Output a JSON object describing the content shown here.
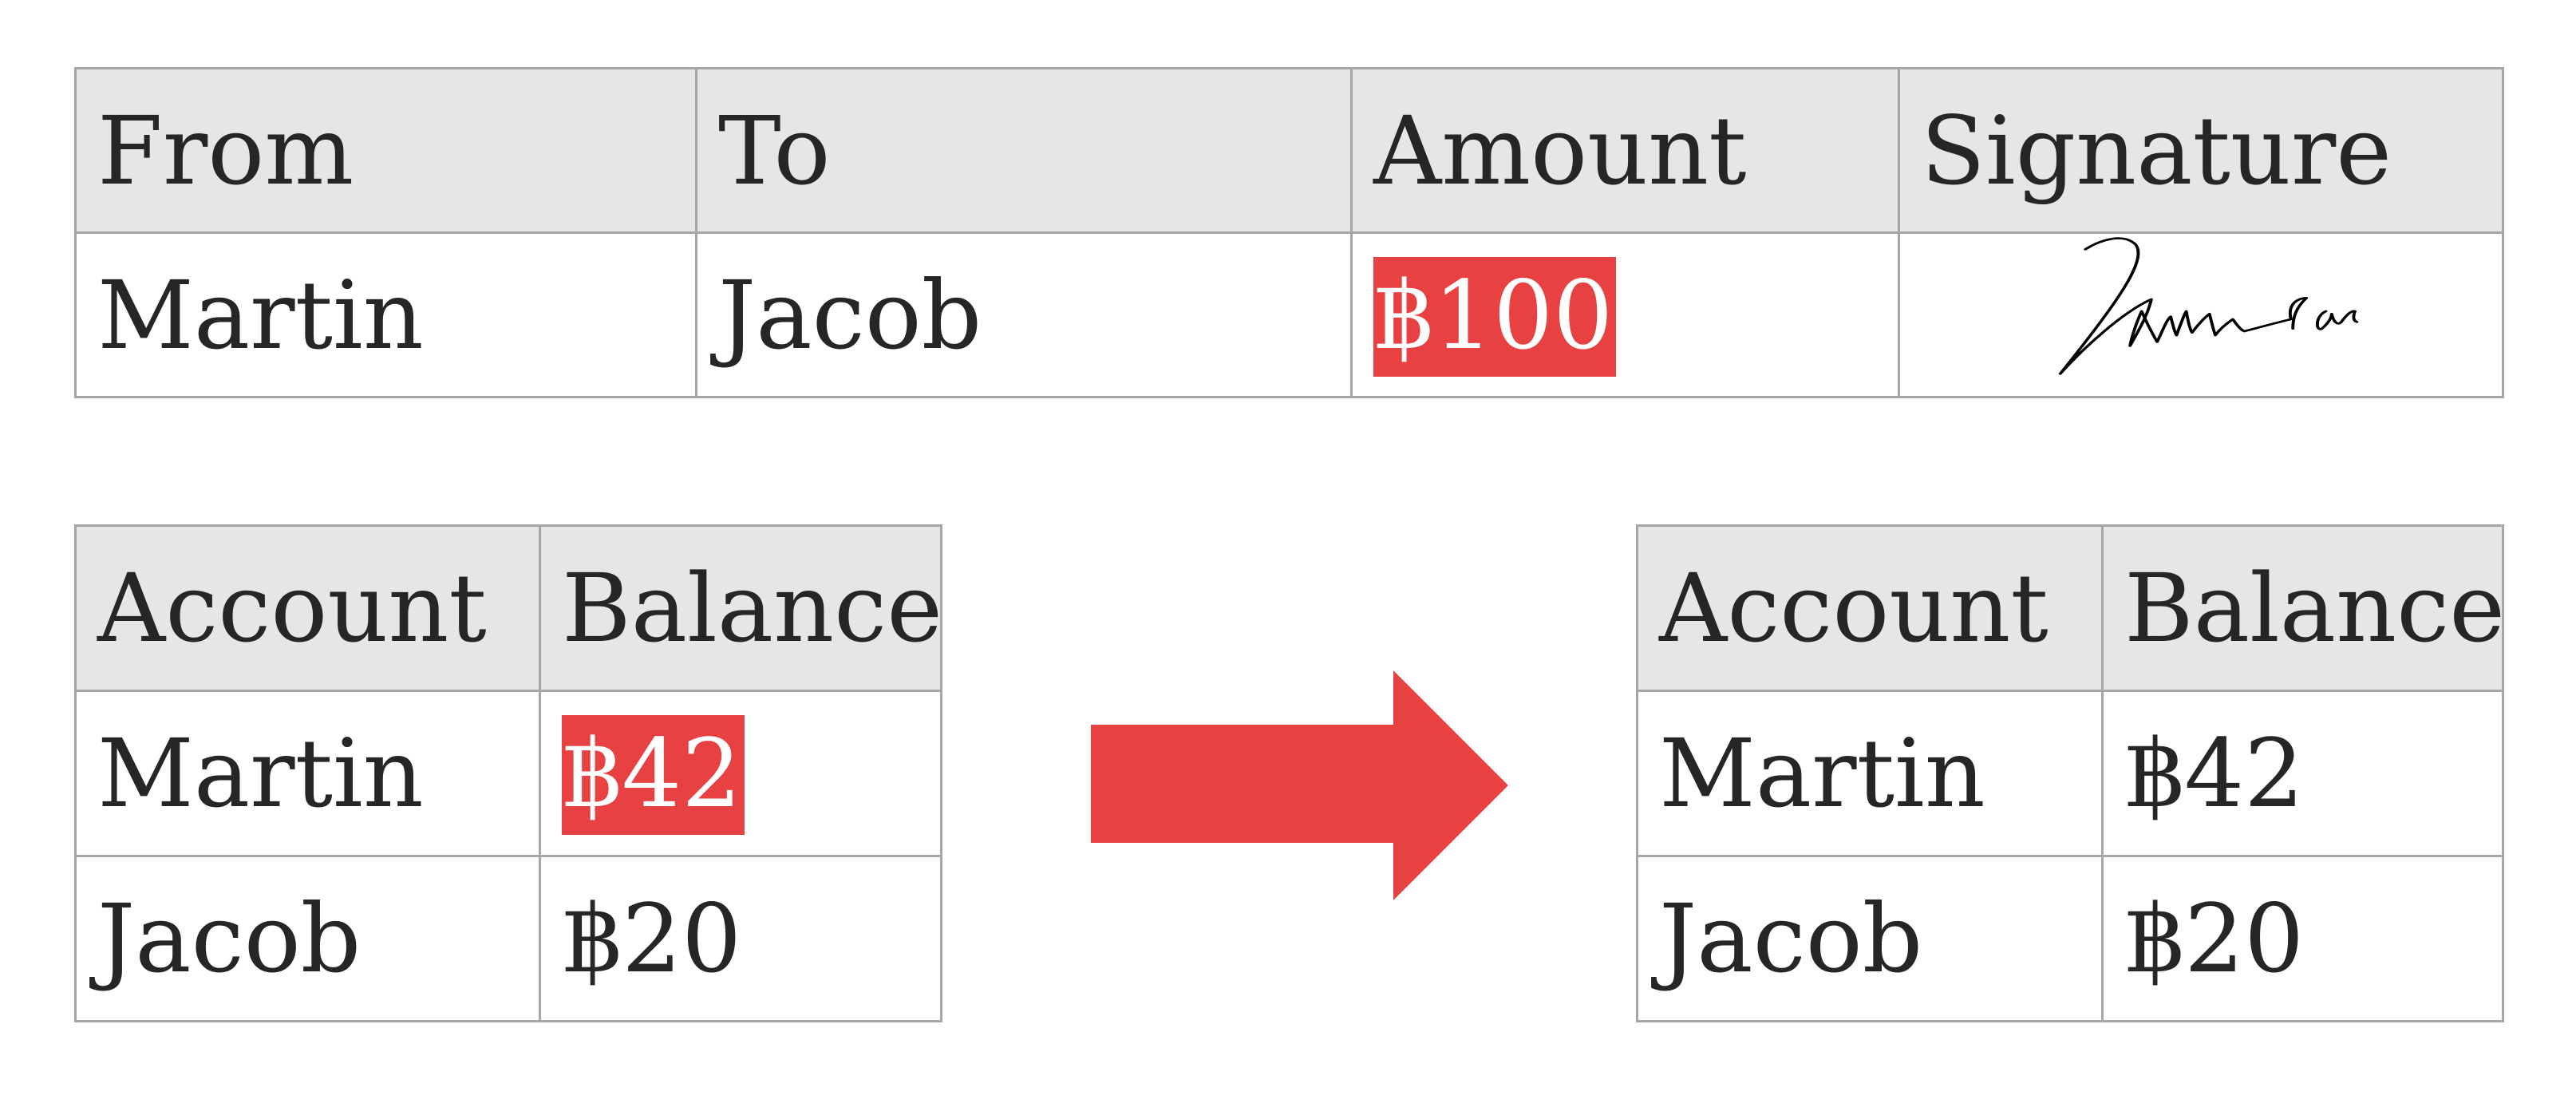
{
  "transaction": {
    "headers": [
      "From",
      "To",
      "Amount",
      "Signature"
    ],
    "row": {
      "from": "Martin",
      "to": "Jacob",
      "amount": "฿100",
      "signature": "Martin signature (handwritten)"
    }
  },
  "balances_before": {
    "headers": [
      "Account",
      "Balance"
    ],
    "rows": [
      {
        "account": "Martin",
        "balance": "฿42"
      },
      {
        "account": "Jacob",
        "balance": "฿20"
      }
    ]
  },
  "balances_after": {
    "headers": [
      "Account",
      "Balance"
    ],
    "rows": [
      {
        "account": "Martin",
        "balance": "฿42"
      },
      {
        "account": "Jacob",
        "balance": "฿20"
      }
    ]
  },
  "colors": {
    "highlight": "#e84142",
    "header_bg": "#e6e6e6",
    "border": "#a6a6a6",
    "arrow": "#e84142"
  },
  "icons": {
    "arrow": "arrow-right-icon"
  }
}
